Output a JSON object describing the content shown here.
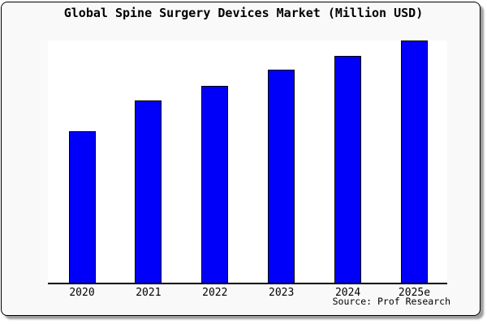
{
  "chart_data": {
    "type": "bar",
    "title": "Global Spine Surgery Devices Market (Million USD)",
    "categories": [
      "2020",
      "2021",
      "2022",
      "2023",
      "2024",
      "2025e"
    ],
    "values": [
      62.5,
      75.1,
      81.2,
      87.8,
      93.7,
      100
    ],
    "units": "relative (% of tallest bar; y-axis has no tick labels in the chart)",
    "xlabel": "",
    "ylabel": "",
    "ylim": [
      0,
      100
    ],
    "grid": false,
    "legend": "none",
    "bar_fill_color": "#0000FA",
    "bar_edge_color": "#000000"
  },
  "footer": {
    "source_label": "Source: Prof Research"
  },
  "colors": {
    "card_background": "#F9F9F9",
    "plot_background": "#FFFFFF",
    "frame_border": "#000000",
    "axis_line": "#000000",
    "text": "#000000",
    "shadow": "#9E9E9E"
  }
}
